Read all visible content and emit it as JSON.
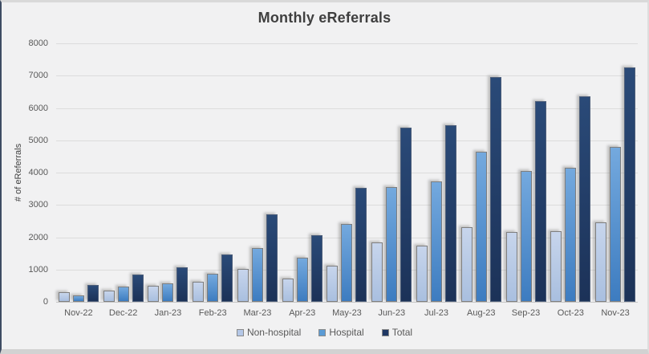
{
  "chart_data": {
    "type": "bar",
    "title": "Monthly eReferrals",
    "xlabel": "",
    "ylabel": "# of eReferrals",
    "ylim": [
      0,
      8000
    ],
    "y_ticks": [
      0,
      1000,
      2000,
      3000,
      4000,
      5000,
      6000,
      7000,
      8000
    ],
    "grid": true,
    "legend_position": "bottom",
    "categories": [
      "Nov-22",
      "Dec-22",
      "Jan-23",
      "Feb-23",
      "Mar-23",
      "Apr-23",
      "May-23",
      "Jun-23",
      "Jul-23",
      "Aug-23",
      "Sep-23",
      "Oct-23",
      "Nov-23"
    ],
    "series": [
      {
        "name": "Non-hospital",
        "values": [
          310,
          360,
          490,
          610,
          1030,
          710,
          1130,
          1840,
          1730,
          2320,
          2150,
          2190,
          2460
        ],
        "fill_top": "#c7d5ec",
        "fill_bottom": "#a9bfdf",
        "border": "#7f7f7f",
        "legend_swatch": "#b4c7e7"
      },
      {
        "name": "Hospital",
        "values": [
          200,
          480,
          570,
          860,
          1670,
          1360,
          2410,
          3560,
          3730,
          4640,
          4060,
          4160,
          4800
        ],
        "fill_top": "#74a9de",
        "fill_bottom": "#3d7cc0",
        "border": "#7f7f7f",
        "legend_swatch": "#5b9bd5"
      },
      {
        "name": "Total",
        "values": [
          510,
          840,
          1060,
          1470,
          2700,
          2070,
          3540,
          5400,
          5460,
          6960,
          6210,
          6350,
          7260
        ],
        "fill_top": "#2a4a78",
        "fill_bottom": "#1c3258",
        "border": "#4e5f7a",
        "legend_swatch": "#1f3864"
      }
    ],
    "colors": {
      "chart_background": "#f1f1f2",
      "gridline": "#dcdcdc",
      "title_text": "#3f3f3f",
      "axis_text": "#595959"
    }
  }
}
